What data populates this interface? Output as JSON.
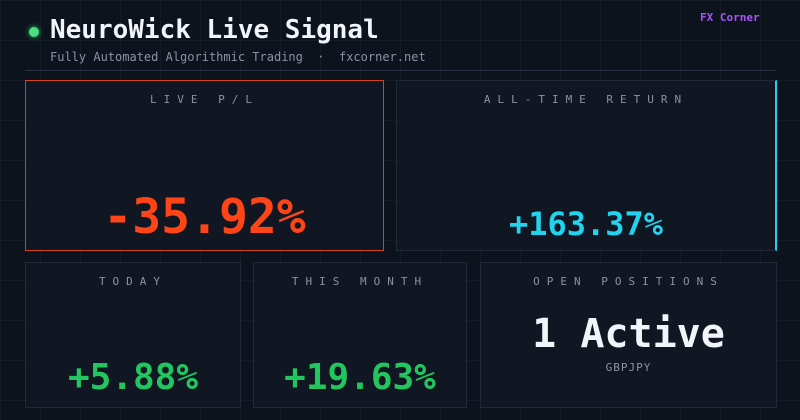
{
  "header": {
    "title": "NeuroWick Live Signal",
    "subtitle": "Fully Automated Algorithmic Trading  ·  fxcorner.net",
    "brand": "FX Corner"
  },
  "cards": [
    {
      "label": "LIVE P/L",
      "value": "-35.92%"
    },
    {
      "label": "ALL-TIME RETURN",
      "value": "+163.37%"
    },
    {
      "label": "TODAY",
      "value": "+5.88%"
    },
    {
      "label": "THIS MONTH",
      "value": "+19.63%"
    },
    {
      "label": "OPEN POSITIONS",
      "value": "1 Active",
      "detail": "GBPJPY"
    }
  ]
}
